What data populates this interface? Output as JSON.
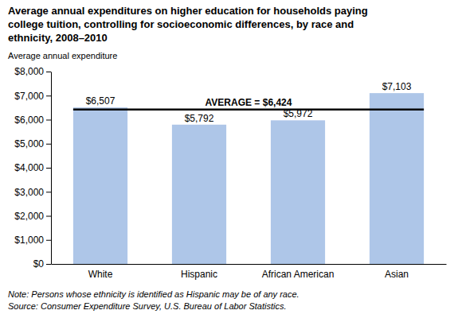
{
  "chart_data": {
    "type": "bar",
    "title": [
      "Average annual expenditures on higher education for households paying",
      "college tuition, controlling for socioeconomic differences, by race and",
      "ethnicity, 2008–2010"
    ],
    "ylabel": "Average annual expenditure",
    "categories": [
      "White",
      "Hispanic",
      "African American",
      "Asian"
    ],
    "values": [
      6507,
      5792,
      5972,
      7103
    ],
    "value_labels": [
      "$6,507",
      "$5,792",
      "$5,972",
      "$7,103"
    ],
    "data_labels": true,
    "color": "#aec6e8",
    "ylim": [
      0,
      8000
    ],
    "yticks": [
      {
        "value": 0,
        "label": "$0"
      },
      {
        "value": 1000,
        "label": "$1,000"
      },
      {
        "value": 2000,
        "label": "$2,000"
      },
      {
        "value": 3000,
        "label": "$3,000"
      },
      {
        "value": 4000,
        "label": "$4,000"
      },
      {
        "value": 5000,
        "label": "$5,000"
      },
      {
        "value": 6000,
        "label": "$6,000"
      },
      {
        "value": 7000,
        "label": "$7,000"
      },
      {
        "value": 8000,
        "label": "$8,000"
      }
    ],
    "grid": false,
    "annotations": [
      {
        "text": "AVERAGE = $6,424",
        "value": 6424,
        "color": "#000000"
      }
    ],
    "note": [
      "Note: Persons whose ethnicity is identified as Hispanic may be of any race.",
      "Source: Consumer Expenditure Survey, U.S. Bureau of Labor Statistics."
    ]
  }
}
